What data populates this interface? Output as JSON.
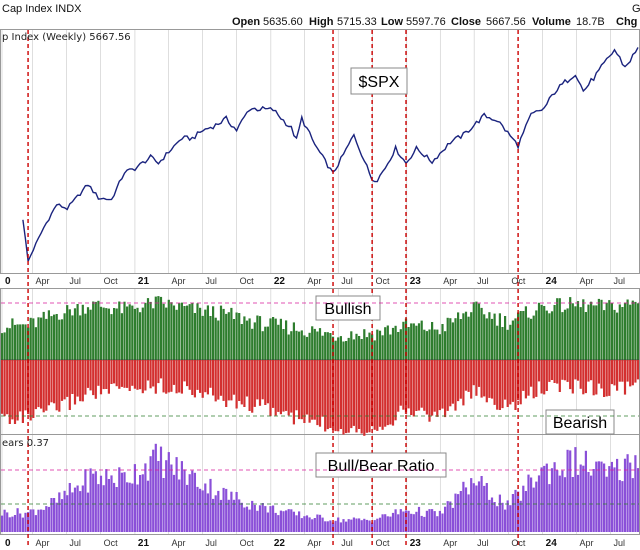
{
  "header": {
    "title": "Cap Index INDX",
    "corner": "G",
    "open_label": "Open",
    "open_value": "5635.60",
    "high_label": "High",
    "high_value": "5715.33",
    "low_label": "Low",
    "low_value": "5597.76",
    "close_label": "Close",
    "close_value": "5667.56",
    "volume_label": "Volume",
    "volume_value": "18.7B",
    "chg_label": "Chg"
  },
  "panes": {
    "price_label": "p Index (Weekly) 5667.56",
    "ratio_label": "ears 0.37"
  },
  "callouts": {
    "spx": "$SPX",
    "bullish": "Bullish",
    "bearish": "Bearish",
    "ratio": "Bull/Bear Ratio"
  },
  "colors": {
    "price_line": "#1a237e",
    "bullish": "#2e7d2e",
    "bearish": "#d32f2f",
    "ratio": "#8a4fd8",
    "event_line": "#cc0000",
    "ref_magenta": "#d81b9a",
    "ref_green": "#2e7d2e",
    "grid": "#c8c8c8"
  },
  "chart_data": [
    {
      "type": "line",
      "title": "p Index (Weekly) 5667.56",
      "series": [
        {
          "name": "$SPX",
          "x": [
            "2020-03-06",
            "2020-03-20",
            "2020-04-03",
            "2020-05-01",
            "2020-06-05",
            "2020-07-03",
            "2020-08-28",
            "2020-09-25",
            "2020-10-30",
            "2020-12-04",
            "2021-01-01",
            "2021-02-12",
            "2021-03-05",
            "2021-04-02",
            "2021-05-07",
            "2021-06-04",
            "2021-07-02",
            "2021-08-06",
            "2021-09-03",
            "2021-10-01",
            "2021-11-05",
            "2022-01-07",
            "2022-02-25",
            "2022-03-11",
            "2022-03-25",
            "2022-04-29",
            "2022-06-17",
            "2022-07-01",
            "2022-08-12",
            "2022-09-30",
            "2022-10-14",
            "2022-11-04",
            "2022-12-02",
            "2022-12-30",
            "2023-01-27",
            "2023-03-10",
            "2023-04-28",
            "2023-06-02",
            "2023-07-28",
            "2023-09-01",
            "2023-10-27",
            "2023-12-01",
            "2024-01-05",
            "2024-02-02",
            "2024-03-29",
            "2024-04-19",
            "2024-05-31",
            "2024-07-12",
            "2024-08-09",
            "2024-09-13"
          ],
          "values": [
            2972,
            2305,
            2489,
            2830,
            3194,
            3130,
            3508,
            3298,
            3270,
            3699,
            3756,
            3934,
            3841,
            4019,
            4232,
            4229,
            4352,
            4437,
            4535,
            4357,
            4697,
            4677,
            4384,
            4204,
            4543,
            4131,
            3675,
            3825,
            4280,
            3586,
            3583,
            3771,
            4071,
            3839,
            4070,
            3862,
            4169,
            4282,
            4582,
            4515,
            4117,
            4595,
            4697,
            4958,
            5254,
            4967,
            5277,
            5615,
            5344,
            5626
          ]
        }
      ],
      "ylim": [
        2200,
        5800
      ]
    },
    {
      "type": "bar",
      "series": [
        {
          "name": "Bullish",
          "x": [
            "2020-03-20",
            "2020-06-05",
            "2020-09-04",
            "2020-12-04",
            "2021-03-05",
            "2021-06-04",
            "2021-09-03",
            "2021-12-03",
            "2022-03-04",
            "2022-06-17",
            "2022-09-30",
            "2022-12-30",
            "2023-03-31",
            "2023-06-30",
            "2023-09-29",
            "2023-12-29",
            "2024-03-29",
            "2024-06-28",
            "2024-09-13"
          ],
          "values": [
            30,
            40,
            48,
            44,
            50,
            44,
            40,
            32,
            28,
            22,
            23,
            30,
            27,
            45,
            33,
            46,
            48,
            46,
            50
          ]
        },
        {
          "name": "Bearish",
          "x": [
            "2020-03-20",
            "2020-06-05",
            "2020-09-04",
            "2020-12-04",
            "2021-03-05",
            "2021-06-04",
            "2021-09-03",
            "2021-12-03",
            "2022-03-04",
            "2022-06-17",
            "2022-09-30",
            "2022-12-30",
            "2023-03-31",
            "2023-06-30",
            "2023-09-29",
            "2023-12-29",
            "2024-03-29",
            "2024-06-28",
            "2024-09-13"
          ],
          "values": [
            50,
            42,
            28,
            26,
            22,
            26,
            35,
            40,
            50,
            58,
            60,
            44,
            48,
            28,
            42,
            24,
            22,
            26,
            22
          ]
        }
      ]
    },
    {
      "type": "bar",
      "title": "ears 0.37",
      "series": [
        {
          "name": "Bull/Bear Ratio",
          "x": [
            "2020-03-20",
            "2020-06-05",
            "2020-09-04",
            "2020-12-04",
            "2021-03-05",
            "2021-06-04",
            "2021-09-03",
            "2021-12-03",
            "2022-03-04",
            "2022-06-17",
            "2022-09-30",
            "2022-12-30",
            "2023-03-31",
            "2023-06-30",
            "2023-09-29",
            "2023-12-29",
            "2024-03-29",
            "2024-06-28",
            "2024-09-13"
          ],
          "values": [
            0.6,
            0.95,
            1.7,
            1.7,
            2.3,
            1.7,
            1.15,
            0.8,
            0.56,
            0.38,
            0.38,
            0.68,
            0.56,
            1.6,
            0.8,
            1.9,
            2.2,
            1.8,
            2.27
          ]
        }
      ]
    }
  ],
  "event_dates": [
    "2020-03-20",
    "2022-06-17",
    "2022-09-30",
    "2022-12-30",
    "2023-10-27"
  ],
  "axis": {
    "x_start": "2020-01-10",
    "x_end": "2024-09-13",
    "ticks": [
      {
        "label": "0",
        "date": "2020-01-10",
        "bold": true
      },
      {
        "label": "Apr",
        "date": "2020-04-01",
        "bold": false
      },
      {
        "label": "Jul",
        "date": "2020-07-01",
        "bold": false
      },
      {
        "label": "Oct",
        "date": "2020-10-01",
        "bold": false
      },
      {
        "label": "21",
        "date": "2021-01-01",
        "bold": true
      },
      {
        "label": "Apr",
        "date": "2021-04-01",
        "bold": false
      },
      {
        "label": "Jul",
        "date": "2021-07-01",
        "bold": false
      },
      {
        "label": "Oct",
        "date": "2021-10-01",
        "bold": false
      },
      {
        "label": "22",
        "date": "2022-01-01",
        "bold": true
      },
      {
        "label": "Apr",
        "date": "2022-04-01",
        "bold": false
      },
      {
        "label": "Jul",
        "date": "2022-07-01",
        "bold": false
      },
      {
        "label": "Oct",
        "date": "2022-10-01",
        "bold": false
      },
      {
        "label": "23",
        "date": "2023-01-01",
        "bold": true
      },
      {
        "label": "Apr",
        "date": "2023-04-01",
        "bold": false
      },
      {
        "label": "Jul",
        "date": "2023-07-01",
        "bold": false
      },
      {
        "label": "Oct",
        "date": "2023-10-01",
        "bold": false
      },
      {
        "label": "24",
        "date": "2024-01-01",
        "bold": true
      },
      {
        "label": "Apr",
        "date": "2024-04-01",
        "bold": false
      },
      {
        "label": "Jul",
        "date": "2024-07-01",
        "bold": false
      }
    ]
  }
}
